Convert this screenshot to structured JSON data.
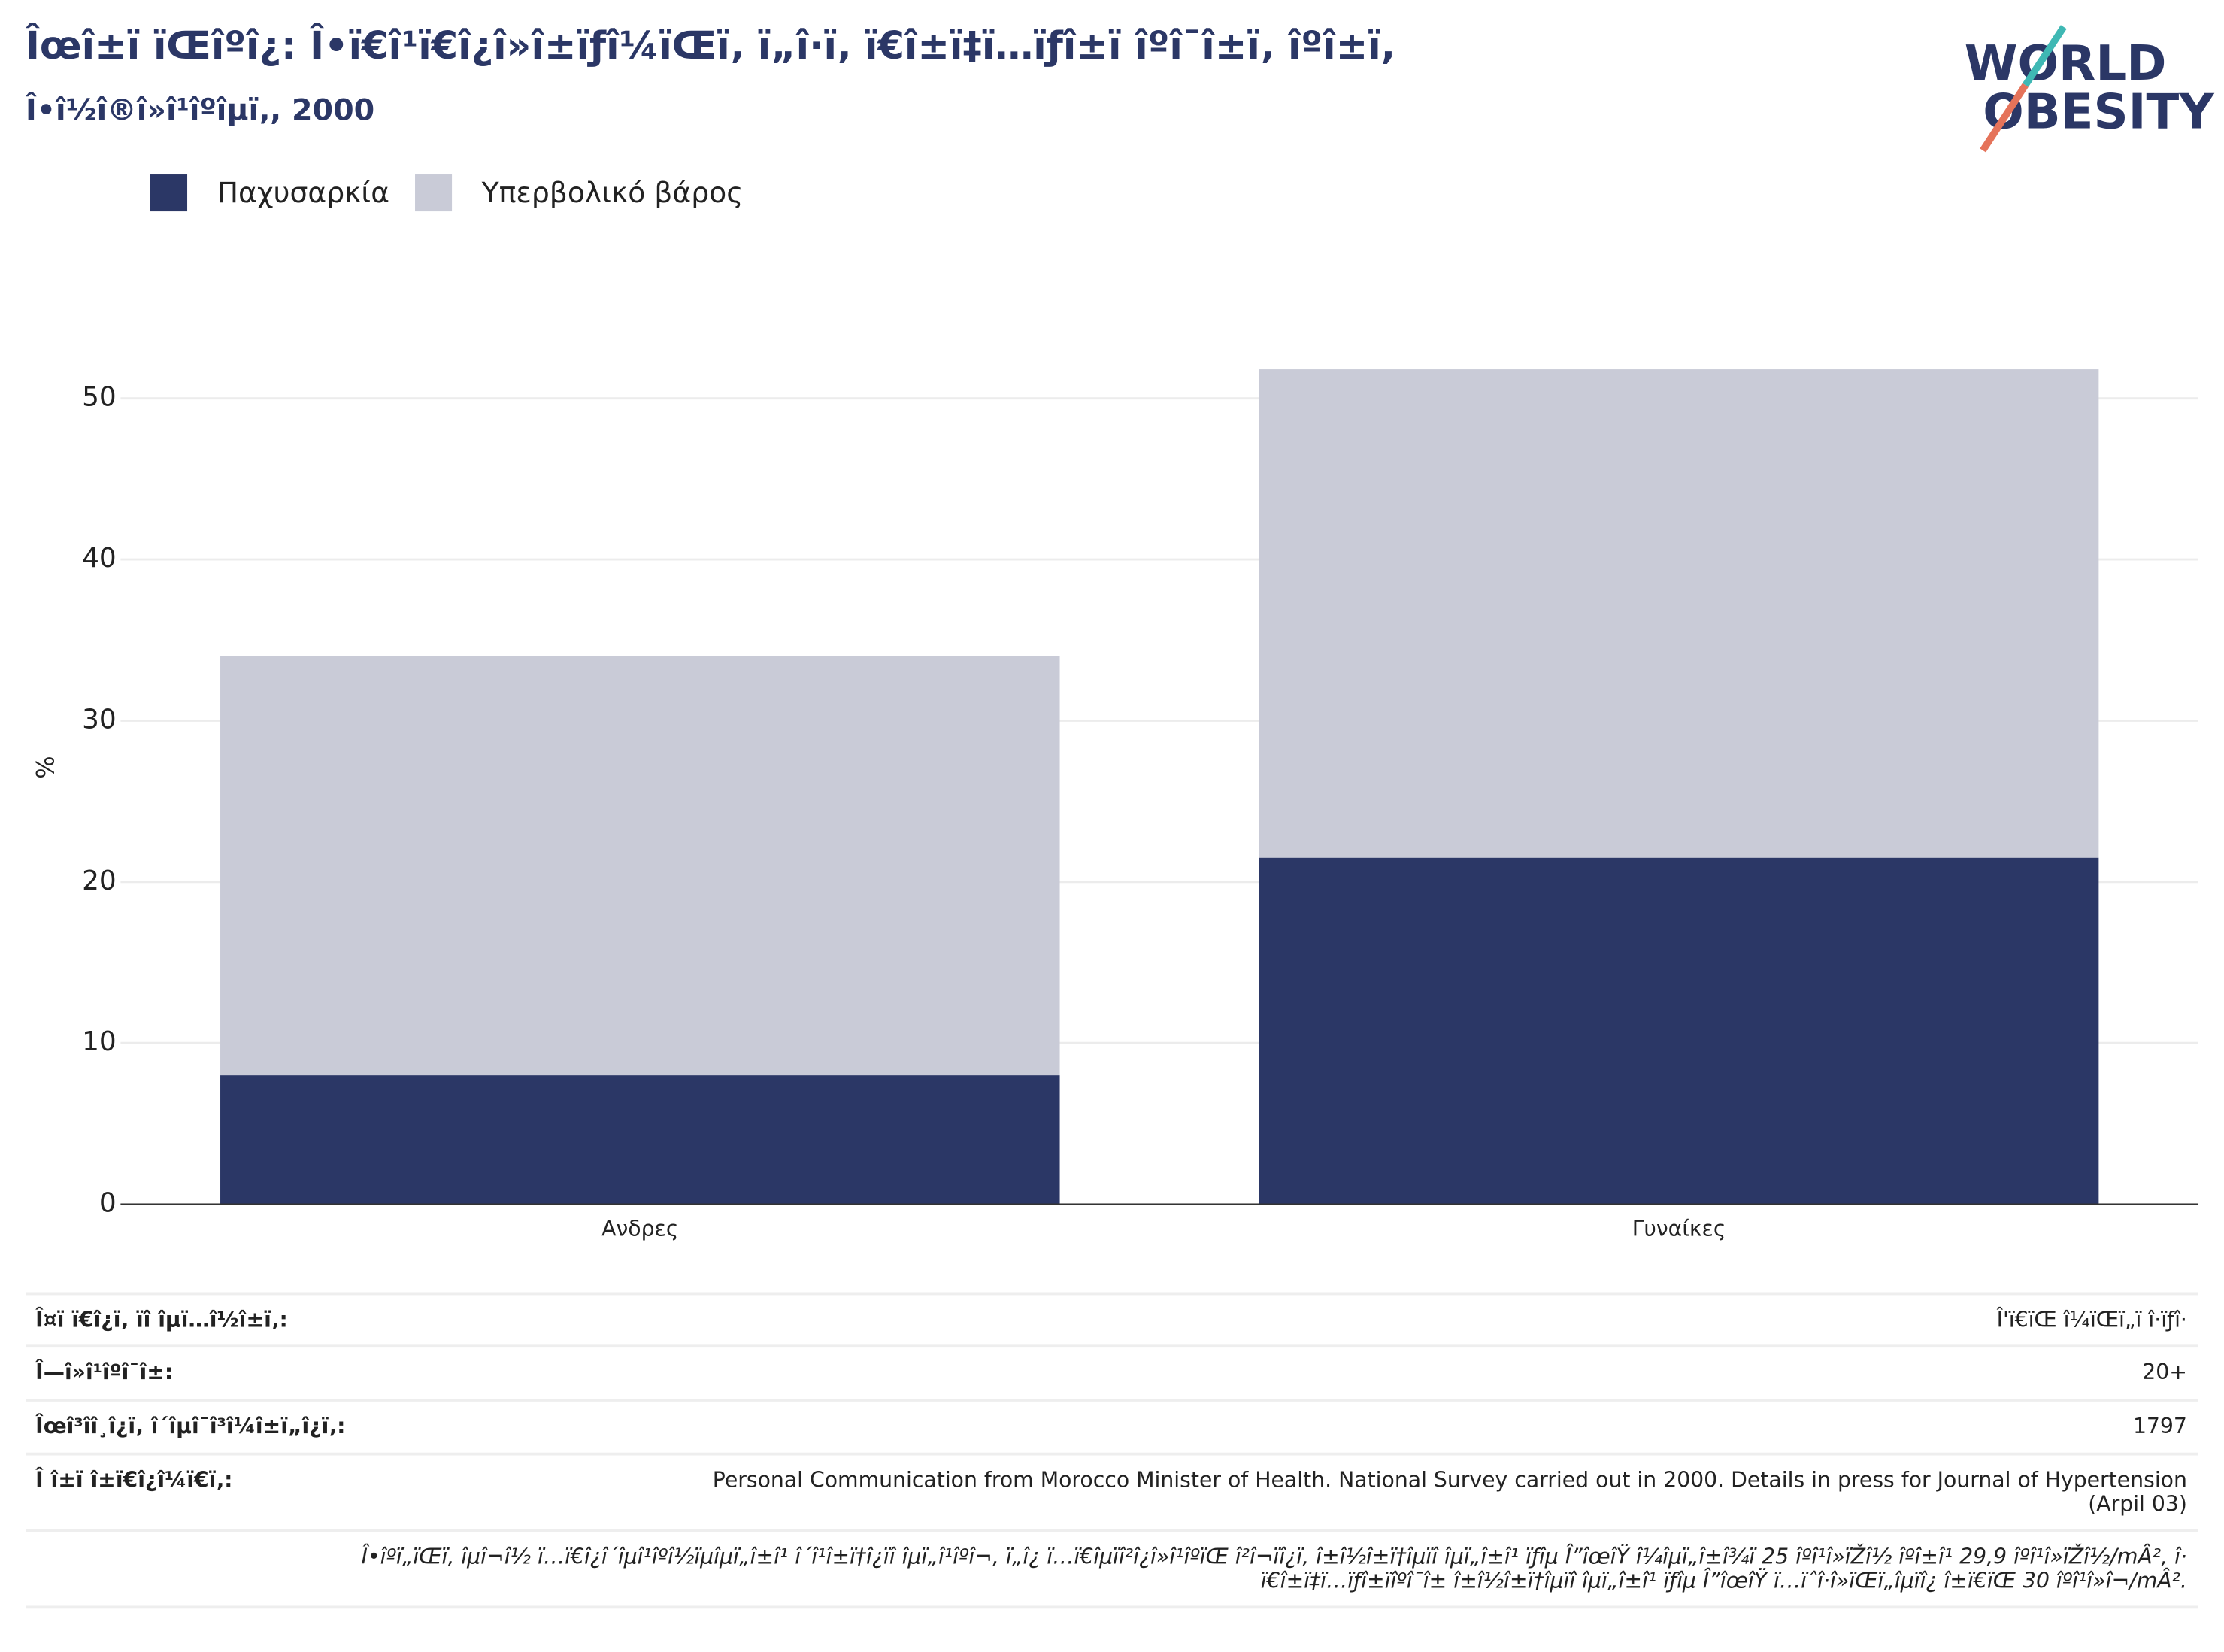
{
  "chart_data": {
    "type": "stacked-bar",
    "title": "Îœî±ï  ïŒîºî¿: Î•ï€î¹ï€î¿î»î±ïƒî¼ïŒï‚ ï„î·ï‚ ï€î±ï‡ï…ïƒî±ï  îºî¯î±ï‚ îºî±ï,",
    "subtitle": "Î•î½î®î»î¹îºîµï‚, 2000",
    "y_label": "%",
    "categories": [
      "Ανδρες",
      "Γυναίκες"
    ],
    "series": [
      {
        "name": "Παχυσαρκία",
        "color": "#2b3766",
        "values": [
          8,
          21.5
        ]
      },
      {
        "name": "Υπερβολικό βάρος",
        "color": "#c9cbd7",
        "values": [
          26,
          30.3
        ]
      }
    ],
    "ylim": [
      0,
      53.5
    ],
    "yticks": [
      0,
      10,
      20,
      30,
      40,
      50
    ],
    "grid": true,
    "legend": "top-left"
  },
  "logo": {
    "line1": "WORLD",
    "line2": "OBESITY"
  },
  "table": {
    "rows": [
      [
        "Î¤ï  ï€î¿ï‚ ïî  îµï…î½î±ï‚:",
        [
          "Î'ï€ïŒ î¼ïŒï„ï  î·ïƒî·"
        ]
      ],
      [
        "Î—î»î¹îºî¯î±:",
        [
          "20+"
        ]
      ],
      [
        "Îœî³î­î¸î¿ï‚ î´îµî¯î³î¼î±ï„î¿ï‚:",
        [
          "1797"
        ]
      ],
      [
        "Î î±ï  î±ï€î¿î¼ï€ï‚:",
        [
          "Personal Communication from Morocco Minister of Health. National Survey carried out in 2000. Details in press for Journal of Hypertension",
          "(Arpil 03)"
        ]
      ]
    ]
  },
  "footnote": [
    "Î•îºï„ïŒï‚ îµî¬î½ ï…ï€î¿î´îµî¹îºî½ïµîµï„î±î¹ î´î¹î±ï†î¿ïî  îµï„î¹îºî¬, ï„î¿ ï…ï€îµïî²î¿î»î¹îºïŒ î²î¬ïî¿ï‚ î±î½î±ï†îµïî  îµï„î±î¹ ïƒîµ Î”îœîŸ î¼îµï„î±î¾ï  25 îºî¹î»ïŽî½ îºî±î¹ 29,9 îºî¹î»ïŽî½/mÂ², î·",
    "ï€î±ï‡ï…ïƒî±ïîºî¯î± î±î½î±ï†îµïî  îµï„î±î¹ ïƒîµ Î”îœîŸ ï…ïˆî·î»ïŒï„îµïî¿ î±ï€ïŒ 30 îºî¹î»î¬/mÂ²."
  ]
}
